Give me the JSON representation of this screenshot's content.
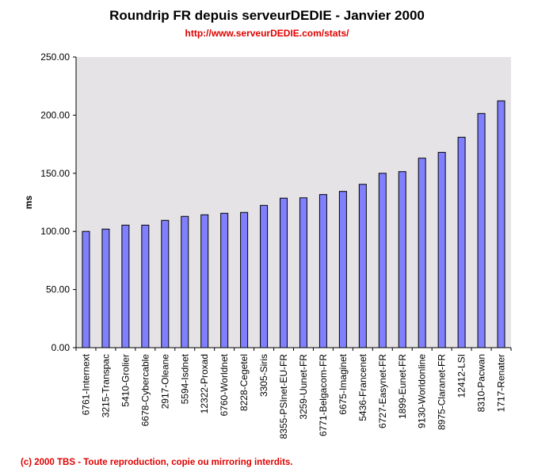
{
  "chart_data": {
    "type": "bar",
    "title": "Roundrip FR depuis serveurDEDIE - Janvier 2000",
    "subtitle": "http://www.serveurDEDIE.com/stats/",
    "xlabel": "",
    "ylabel": "ms",
    "ylim": [
      0,
      250
    ],
    "yticks": [
      "0.00",
      "50.00",
      "100.00",
      "150.00",
      "200.00",
      "250.00"
    ],
    "grid": false,
    "categories": [
      "6761-Internext",
      "3215-Transpac",
      "5410-Grolier",
      "6678-Cybercable",
      "2917-Oleane",
      "5594-Isdnet",
      "12322-Proxad",
      "6760-Worldnet",
      "8228-Cegetel",
      "3305-Siris",
      "8355-PSInet-EU-FR",
      "3259-Uunet-FR",
      "6771-Belgacom-FR",
      "6675-Imaginet",
      "5436-Francenet",
      "6727-Easynet-FR",
      "1899-Eunet-FR",
      "9130-Worldonline",
      "8975-Claranet-FR",
      "12412-LSI",
      "8310-Pacwan",
      "1717-Renater"
    ],
    "values": [
      100,
      102,
      105.4,
      105.4,
      109.5,
      112.9,
      114.3,
      115.6,
      116.3,
      122.4,
      128.6,
      128.9,
      131.7,
      134.4,
      140.5,
      150,
      151.4,
      163,
      168,
      181,
      201.4,
      212.3
    ],
    "colors": {
      "bar": "#8080ff",
      "plot_bg": "#e6e3e6"
    }
  },
  "footer": "(c) 2000 TBS - Toute reproduction, copie ou mirroring interdits."
}
